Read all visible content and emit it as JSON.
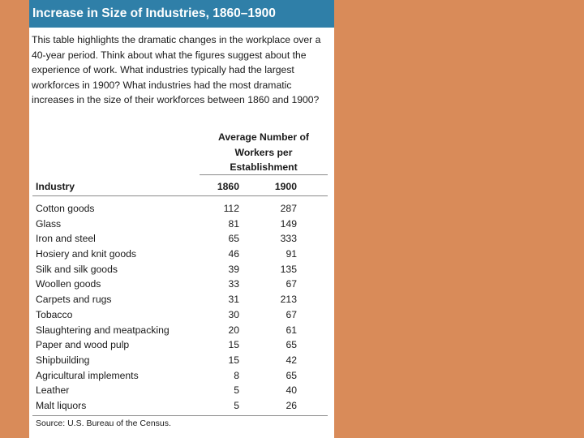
{
  "title": "Increase in Size of Industries, 1860–1900",
  "intro": "This table highlights the dramatic changes in the workplace over a 40-year period. Think about what the figures suggest about the experience of work. What industries typically had the largest workforces in 1900? What industries had the most dramatic increases in the size of their workforces between 1860 and 1900?",
  "group_header": [
    "Average Number of",
    "Workers per",
    "Establishment"
  ],
  "columns": {
    "industry": "Industry",
    "y1860": "1860",
    "y1900": "1900"
  },
  "rows": [
    {
      "industry": "Cotton goods",
      "y1860": "112",
      "y1900": "287"
    },
    {
      "industry": "Glass",
      "y1860": "81",
      "y1900": "149"
    },
    {
      "industry": "Iron and steel",
      "y1860": "65",
      "y1900": "333"
    },
    {
      "industry": "Hosiery and knit goods",
      "y1860": "46",
      "y1900": "91"
    },
    {
      "industry": "Silk and silk goods",
      "y1860": "39",
      "y1900": "135"
    },
    {
      "industry": "Woollen goods",
      "y1860": "33",
      "y1900": "67"
    },
    {
      "industry": "Carpets and rugs",
      "y1860": "31",
      "y1900": "213"
    },
    {
      "industry": "Tobacco",
      "y1860": "30",
      "y1900": "67"
    },
    {
      "industry": "Slaughtering and meatpacking",
      "y1860": "20",
      "y1900": "61"
    },
    {
      "industry": "Paper and wood pulp",
      "y1860": "15",
      "y1900": "65"
    },
    {
      "industry": "Shipbuilding",
      "y1860": "15",
      "y1900": "42"
    },
    {
      "industry": "Agricultural implements",
      "y1860": "8",
      "y1900": "65"
    },
    {
      "industry": "Leather",
      "y1860": "5",
      "y1900": "40"
    },
    {
      "industry": "Malt liquors",
      "y1860": "5",
      "y1900": "26"
    }
  ],
  "source": "Source: U.S. Bureau of the Census.",
  "colors": {
    "background": "#d98b59",
    "title_bar": "#2f7fa8"
  }
}
